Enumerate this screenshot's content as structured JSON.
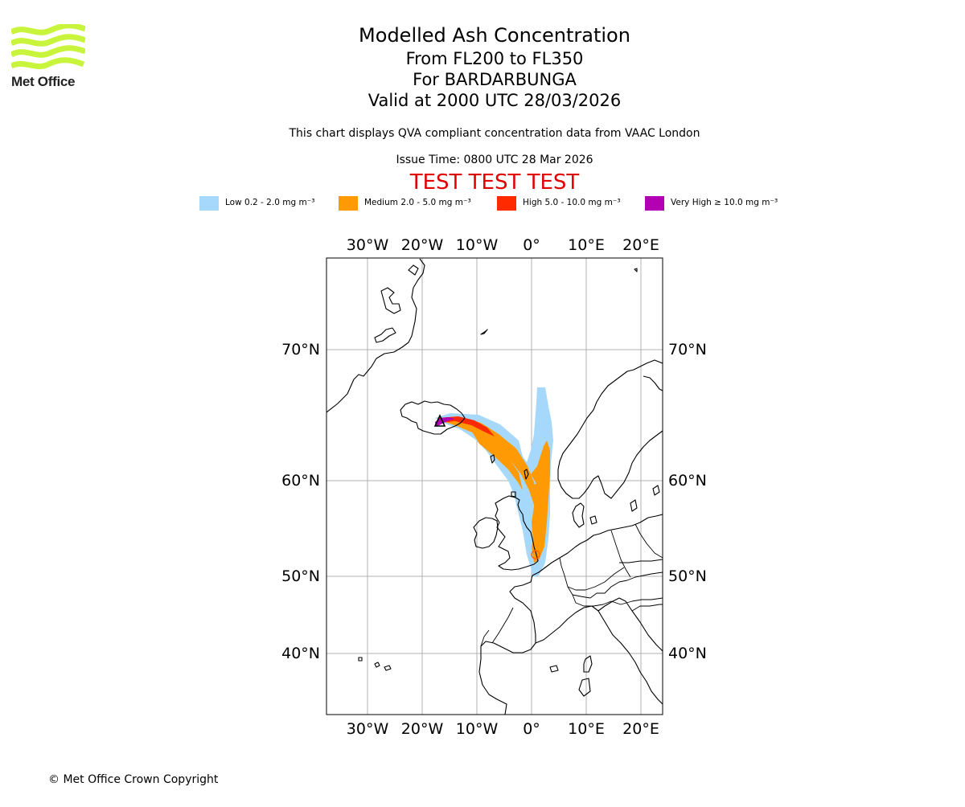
{
  "logo": {
    "name": "Met Office",
    "brand_color": "#c8f53c"
  },
  "header": {
    "title": "Modelled Ash Concentration",
    "levels": "From FL200 to FL350",
    "volcano": "For BARDARBUNGA",
    "valid_time": "Valid at 2000 UTC 28/03/2026",
    "note": "This chart displays QVA compliant concentration data from VAAC London",
    "issue_time": "Issue Time: 0800 UTC 28 Mar 2026",
    "test_banner": "TEST TEST TEST",
    "test_color": "#e00000"
  },
  "legend": [
    {
      "label": "Low 0.2 - 2.0 mg m⁻³",
      "color": "#a6d8fc"
    },
    {
      "label": "Medium 2.0 - 5.0 mg m⁻³",
      "color": "#ff9a05"
    },
    {
      "label": "High 5.0 - 10.0 mg m⁻³",
      "color": "#ff2a00"
    },
    {
      "label": "Very High ≥ 10.0 mg m⁻³",
      "color": "#b200b2"
    }
  ],
  "map": {
    "lon_ticks": [
      "30°W",
      "20°W",
      "10°W",
      "0°",
      "10°E",
      "20°E"
    ],
    "lat_ticks": [
      "70°N",
      "60°N",
      "50°N",
      "40°N"
    ],
    "volcano_marker": "triangle",
    "source_name": "BARDARBUNGA"
  },
  "footer": {
    "copyright": "© Met Office Crown Copyright"
  }
}
